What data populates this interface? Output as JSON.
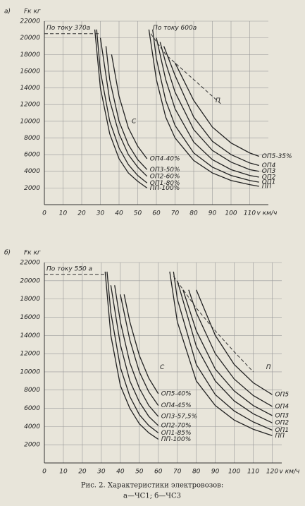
{
  "chart_data": [
    {
      "type": "line",
      "panel_label": "а)",
      "ylabel": "Fк кг",
      "xlabel": "v км/ч",
      "xlim": [
        0,
        120
      ],
      "ylim": [
        0,
        22000
      ],
      "grid": true,
      "xticks": [
        0,
        10,
        20,
        30,
        40,
        50,
        60,
        70,
        80,
        90,
        100,
        110
      ],
      "yticks": [
        2000,
        4000,
        6000,
        8000,
        10000,
        12000,
        14000,
        16000,
        18000,
        20000,
        22000
      ],
      "series": [
        {
          "name": "ПП-100%",
          "color": "#222",
          "x": [
            27,
            30,
            35,
            40,
            45,
            50,
            55
          ],
          "values": [
            21000,
            14000,
            8500,
            5500,
            3800,
            2800,
            2000
          ]
        },
        {
          "name": "ОП1-80%",
          "color": "#222",
          "x": [
            28,
            30,
            35,
            40,
            45,
            50,
            55
          ],
          "values": [
            21000,
            16000,
            10000,
            6800,
            4800,
            3500,
            2600
          ]
        },
        {
          "name": "ОП2-60%",
          "color": "#222",
          "x": [
            30,
            35,
            40,
            45,
            50,
            55
          ],
          "values": [
            20000,
            12500,
            8500,
            6000,
            4500,
            3400
          ]
        },
        {
          "name": "ОП3-50%",
          "color": "#222",
          "x": [
            33,
            35,
            40,
            45,
            50,
            55
          ],
          "values": [
            19000,
            15000,
            10000,
            7200,
            5400,
            4200
          ]
        },
        {
          "name": "ОП4-40%",
          "color": "#222",
          "x": [
            36,
            40,
            45,
            50,
            55
          ],
          "values": [
            18000,
            13000,
            9200,
            7000,
            5500
          ]
        },
        {
          "name": "ПП",
          "color": "#222",
          "x": [
            56,
            60,
            65,
            70,
            80,
            90,
            100,
            110,
            115
          ],
          "values": [
            21000,
            15000,
            10500,
            8000,
            5300,
            3800,
            2900,
            2400,
            2200
          ]
        },
        {
          "name": "ОП1",
          "color": "#222",
          "x": [
            58,
            60,
            65,
            70,
            80,
            90,
            100,
            110,
            115
          ],
          "values": [
            21000,
            17500,
            12500,
            9500,
            6200,
            4500,
            3500,
            2900,
            2700
          ]
        },
        {
          "name": "ОП2",
          "color": "#222",
          "x": [
            60,
            65,
            70,
            80,
            90,
            100,
            110,
            115
          ],
          "values": [
            20000,
            15000,
            11500,
            7500,
            5400,
            4200,
            3500,
            3300
          ]
        },
        {
          "name": "ОП3",
          "color": "#222",
          "x": [
            62,
            65,
            70,
            80,
            90,
            100,
            110,
            115
          ],
          "values": [
            19500,
            17000,
            13500,
            9000,
            6500,
            5100,
            4200,
            4000
          ]
        },
        {
          "name": "ОП4",
          "color": "#222",
          "x": [
            64,
            70,
            80,
            90,
            100,
            110,
            115
          ],
          "values": [
            19000,
            15500,
            10500,
            7600,
            6000,
            5000,
            4700
          ]
        },
        {
          "name": "ОП5-35%",
          "color": "#222",
          "x": [
            70,
            80,
            90,
            100,
            110,
            115
          ],
          "values": [
            17000,
            12500,
            9300,
            7400,
            6200,
            5800
          ]
        }
      ],
      "limits": [
        {
          "label": "По току 370а",
          "x": [
            0,
            30
          ],
          "values": [
            20500,
            20500
          ]
        },
        {
          "label": "По току 600а",
          "x": [
            57,
            65,
            75,
            85,
            95
          ],
          "values": [
            20500,
            18000,
            16000,
            14000,
            12000
          ]
        }
      ],
      "annotations": [
        {
          "text": "С",
          "x": 48,
          "y": 10000
        },
        {
          "text": "П",
          "x": 93,
          "y": 12500
        }
      ]
    },
    {
      "type": "line",
      "panel_label": "б)",
      "ylabel": "Fк кг",
      "xlabel": "v км/ч",
      "xlim": [
        0,
        125
      ],
      "ylim": [
        0,
        22000
      ],
      "grid": true,
      "xticks": [
        0,
        10,
        20,
        30,
        40,
        50,
        60,
        70,
        80,
        90,
        100,
        110,
        120
      ],
      "yticks": [
        2000,
        4000,
        6000,
        8000,
        10000,
        12000,
        14000,
        16000,
        18000,
        20000,
        22000
      ],
      "series": [
        {
          "name": "ПП-100%",
          "color": "#222",
          "x": [
            32,
            35,
            40,
            45,
            50,
            55,
            60
          ],
          "values": [
            21000,
            14000,
            8500,
            6000,
            4300,
            3300,
            2600
          ]
        },
        {
          "name": "ОП1-85%",
          "color": "#222",
          "x": [
            33,
            35,
            40,
            45,
            50,
            55,
            60
          ],
          "values": [
            21000,
            16500,
            10500,
            7300,
            5300,
            4100,
            3300
          ]
        },
        {
          "name": "ОП2-70%",
          "color": "#222",
          "x": [
            35,
            40,
            45,
            50,
            55,
            60
          ],
          "values": [
            19500,
            13000,
            9000,
            6700,
            5100,
            4100
          ]
        },
        {
          "name": "ОП3-57,5%",
          "color": "#222",
          "x": [
            37,
            40,
            45,
            50,
            55,
            60
          ],
          "values": [
            19500,
            15500,
            11000,
            8200,
            6300,
            5100
          ]
        },
        {
          "name": "ОП4-45%",
          "color": "#222",
          "x": [
            40,
            45,
            50,
            55,
            60
          ],
          "values": [
            18500,
            13500,
            10000,
            7800,
            6300
          ]
        },
        {
          "name": "ОП5-40%",
          "color": "#222",
          "x": [
            42,
            45,
            50,
            55,
            60
          ],
          "values": [
            18500,
            15500,
            11800,
            9300,
            7600
          ]
        },
        {
          "name": "ПП",
          "color": "#222",
          "x": [
            66,
            70,
            80,
            90,
            100,
            110,
            120
          ],
          "values": [
            21000,
            15500,
            9000,
            6300,
            4700,
            3700,
            3000
          ]
        },
        {
          "name": "ОП1",
          "color": "#222",
          "x": [
            68,
            70,
            80,
            90,
            100,
            110,
            120
          ],
          "values": [
            21000,
            18000,
            10800,
            7500,
            5700,
            4500,
            3600
          ]
        },
        {
          "name": "ОП2",
          "color": "#222",
          "x": [
            70,
            80,
            90,
            100,
            110,
            120
          ],
          "values": [
            20000,
            12800,
            9000,
            6800,
            5400,
            4400
          ]
        },
        {
          "name": "ОП3",
          "color": "#222",
          "x": [
            73,
            80,
            90,
            100,
            110,
            120
          ],
          "values": [
            19000,
            14500,
            10300,
            7900,
            6300,
            5200
          ]
        },
        {
          "name": "ОП4",
          "color": "#222",
          "x": [
            76,
            80,
            90,
            100,
            110,
            120
          ],
          "values": [
            19000,
            16500,
            12000,
            9200,
            7400,
            6200
          ]
        },
        {
          "name": "ОП5",
          "color": "#222",
          "x": [
            80,
            90,
            100,
            110,
            120
          ],
          "values": [
            19000,
            14000,
            10800,
            8800,
            7500
          ]
        }
      ],
      "limits": [
        {
          "label": "По току 550 а",
          "x": [
            0,
            32
          ],
          "values": [
            20700,
            20700
          ]
        },
        {
          "label": "",
          "x": [
            68,
            80,
            90,
            100,
            110
          ],
          "values": [
            20500,
            17000,
            14500,
            12200,
            10000
          ]
        }
      ],
      "annotations": [
        {
          "text": "С",
          "x": 62,
          "y": 10500
        },
        {
          "text": "П",
          "x": 118,
          "y": 10500
        }
      ]
    }
  ],
  "caption": {
    "line1": "Рис. 2. Характеристики электровозов:",
    "line2": "а—ЧС1; б—ЧС3"
  }
}
